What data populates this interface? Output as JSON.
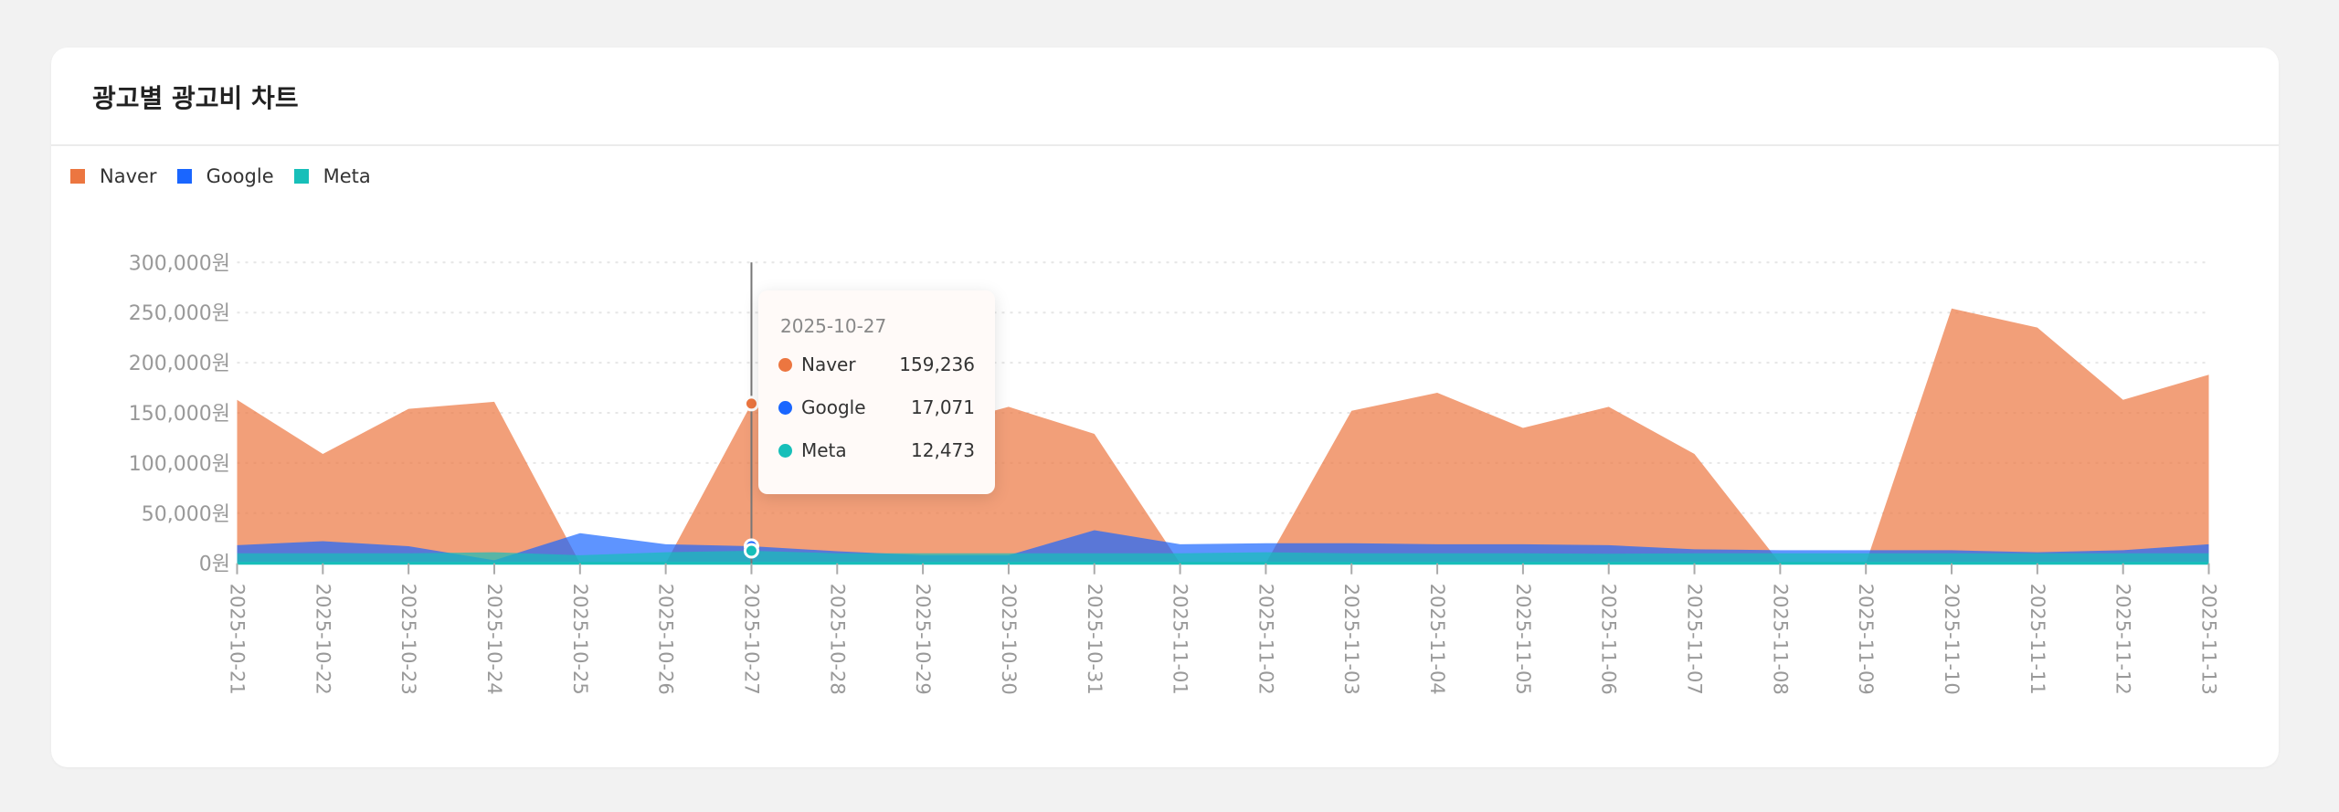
{
  "card": {
    "title": "광고별 광고비 차트"
  },
  "chart_data": {
    "type": "area",
    "title": "광고별 광고비 차트",
    "xlabel": "",
    "ylabel": "",
    "ylim": [
      0,
      300000
    ],
    "y_ticks": [
      0,
      50000,
      100000,
      150000,
      200000,
      250000,
      300000
    ],
    "y_tick_labels": [
      "0원",
      "50,000원",
      "100,000원",
      "150,000원",
      "200,000원",
      "250,000원",
      "300,000원"
    ],
    "grid": true,
    "legend_position": "top-left",
    "categories": [
      "2025-10-21",
      "2025-10-22",
      "2025-10-23",
      "2025-10-24",
      "2025-10-25",
      "2025-10-26",
      "2025-10-27",
      "2025-10-28",
      "2025-10-29",
      "2025-10-30",
      "2025-10-31",
      "2025-11-01",
      "2025-11-02",
      "2025-11-03",
      "2025-11-04",
      "2025-11-05",
      "2025-11-06",
      "2025-11-07",
      "2025-11-08",
      "2025-11-09",
      "2025-11-10",
      "2025-11-11",
      "2025-11-12",
      "2025-11-13"
    ],
    "series": [
      {
        "name": "Naver",
        "color": "#ec7640",
        "values": [
          163000,
          109000,
          154000,
          161000,
          0,
          0,
          159236,
          145000,
          133000,
          156000,
          129000,
          0,
          0,
          152000,
          170000,
          135000,
          156000,
          109000,
          0,
          0,
          254000,
          235000,
          163000,
          188000
        ]
      },
      {
        "name": "Google",
        "color": "#1a66ff",
        "values": [
          18000,
          22000,
          17000,
          3000,
          30000,
          19000,
          17071,
          12000,
          8000,
          8000,
          33000,
          19000,
          20000,
          20000,
          19000,
          19000,
          18000,
          14000,
          13000,
          13000,
          13000,
          11000,
          13000,
          19000
        ]
      },
      {
        "name": "Meta",
        "color": "#17bfb9",
        "values": [
          10000,
          10000,
          10000,
          11000,
          8000,
          11000,
          12473,
          10000,
          10000,
          10000,
          10000,
          10000,
          11000,
          10000,
          10000,
          10000,
          9500,
          10000,
          10000,
          10000,
          10000,
          10000,
          10000,
          10000
        ]
      }
    ]
  },
  "tooltip": {
    "date": "2025-10-27",
    "rows": [
      {
        "name": "Naver",
        "value": "159,236",
        "color": "#ec7640"
      },
      {
        "name": "Google",
        "value": "17,071",
        "color": "#1a66ff"
      },
      {
        "name": "Meta",
        "value": "12,473",
        "color": "#17bfb9"
      }
    ]
  }
}
